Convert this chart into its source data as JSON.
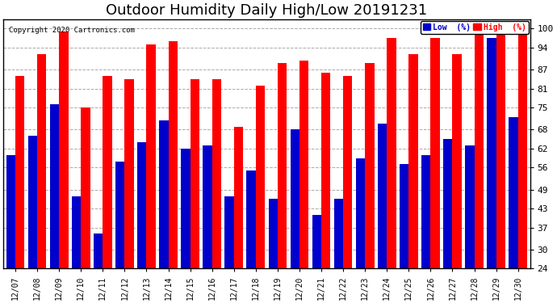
{
  "title": "Outdoor Humidity Daily High/Low 20191231",
  "copyright": "Copyright 2020 Cartronics.com",
  "dates": [
    "12/07",
    "12/08",
    "12/09",
    "12/10",
    "12/11",
    "12/12",
    "12/13",
    "12/14",
    "12/15",
    "12/16",
    "12/17",
    "12/18",
    "12/19",
    "12/20",
    "12/21",
    "12/22",
    "12/23",
    "12/24",
    "12/25",
    "12/26",
    "12/27",
    "12/28",
    "12/29",
    "12/30"
  ],
  "high": [
    85,
    92,
    99,
    75,
    85,
    84,
    95,
    96,
    84,
    84,
    69,
    82,
    89,
    90,
    86,
    85,
    89,
    97,
    92,
    97,
    92,
    100,
    100,
    99
  ],
  "low": [
    60,
    66,
    76,
    47,
    35,
    58,
    64,
    71,
    62,
    63,
    47,
    55,
    46,
    68,
    41,
    46,
    59,
    70,
    57,
    60,
    65,
    63,
    97,
    72
  ],
  "high_color": "#ff0000",
  "low_color": "#0000cc",
  "bg_color": "#ffffff",
  "grid_color": "#aaaaaa",
  "yticks": [
    24,
    30,
    37,
    43,
    49,
    56,
    62,
    68,
    75,
    81,
    87,
    94,
    100
  ],
  "ymin": 24,
  "ymax": 103,
  "title_fontsize": 13,
  "legend_low_label": "Low  (%)",
  "legend_high_label": "High  (%)"
}
